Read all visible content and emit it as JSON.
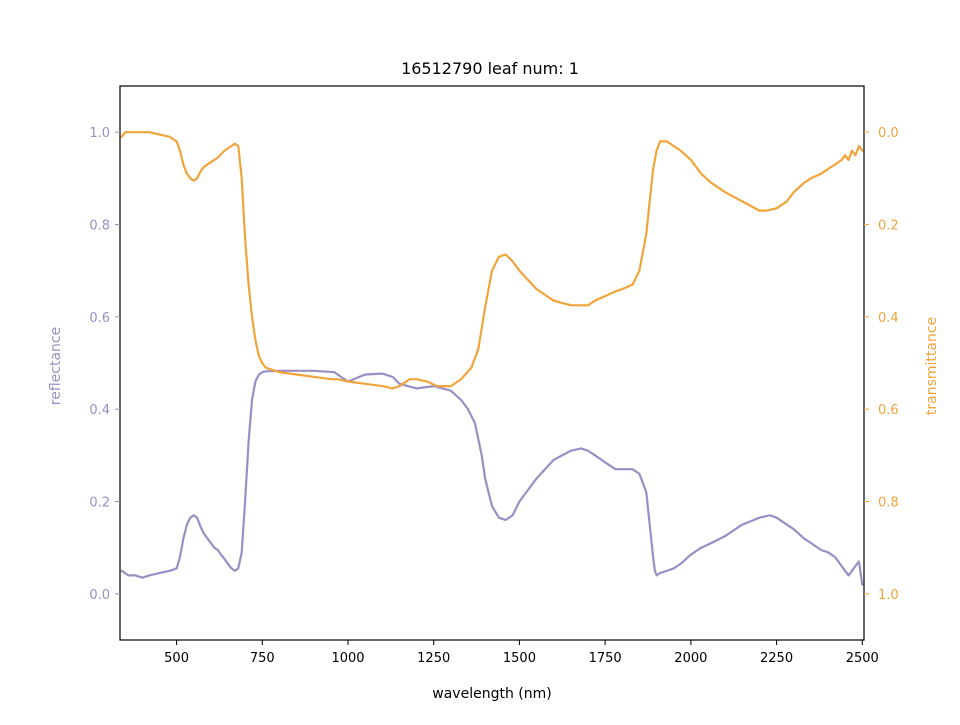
{
  "chart_data": {
    "type": "line",
    "title": "16512790 leaf num: 1",
    "xlabel": "wavelength (nm)",
    "xlim": [
      335,
      2505
    ],
    "xticks": [
      500,
      750,
      1000,
      1250,
      1500,
      1750,
      2000,
      2250,
      2500
    ],
    "xtick_labels": [
      "500",
      "750",
      "1000",
      "1250",
      "1500",
      "1750",
      "2000",
      "2250",
      "2500"
    ],
    "grid": false,
    "legend": "none",
    "left_axis": {
      "label": "reflectance",
      "color": "#9890c4",
      "lim": [
        -0.1,
        1.1
      ],
      "ticks": [
        0.0,
        0.2,
        0.4,
        0.6,
        0.8,
        1.0
      ],
      "tick_labels": [
        "0.0",
        "0.2",
        "0.4",
        "0.6",
        "0.8",
        "1.0"
      ]
    },
    "right_axis": {
      "label": "transmittance",
      "color": "#f0a43c",
      "lim": [
        1.1,
        -0.1
      ],
      "inverted": true,
      "ticks": [
        0.0,
        0.2,
        0.4,
        0.6,
        0.8,
        1.0
      ],
      "tick_labels": [
        "0.0",
        "0.2",
        "0.4",
        "0.6",
        "0.8",
        "1.0"
      ]
    },
    "series": [
      {
        "axis": "left",
        "color": "#9890c4",
        "x": [
          340,
          350,
          360,
          380,
          400,
          420,
          450,
          480,
          500,
          510,
          520,
          530,
          540,
          550,
          560,
          570,
          580,
          590,
          600,
          610,
          620,
          630,
          640,
          650,
          660,
          670,
          680,
          690,
          700,
          710,
          720,
          730,
          740,
          750,
          760,
          800,
          900,
          960,
          980,
          1000,
          1050,
          1100,
          1130,
          1150,
          1200,
          1250,
          1300,
          1330,
          1350,
          1370,
          1390,
          1400,
          1420,
          1440,
          1460,
          1480,
          1500,
          1550,
          1600,
          1650,
          1680,
          1700,
          1720,
          1750,
          1780,
          1800,
          1830,
          1850,
          1870,
          1880,
          1890,
          1895,
          1900,
          1910,
          1930,
          1950,
          1970,
          2000,
          2030,
          2060,
          2100,
          2150,
          2200,
          2230,
          2250,
          2270,
          2300,
          2330,
          2350,
          2380,
          2400,
          2420,
          2440,
          2450,
          2460,
          2470,
          2480,
          2490,
          2500
        ],
        "values": [
          0.05,
          0.045,
          0.04,
          0.04,
          0.035,
          0.04,
          0.045,
          0.05,
          0.055,
          0.08,
          0.12,
          0.15,
          0.165,
          0.17,
          0.165,
          0.145,
          0.13,
          0.12,
          0.11,
          0.1,
          0.095,
          0.085,
          0.075,
          0.065,
          0.055,
          0.05,
          0.055,
          0.09,
          0.2,
          0.33,
          0.42,
          0.46,
          0.475,
          0.48,
          0.482,
          0.483,
          0.483,
          0.48,
          0.47,
          0.46,
          0.475,
          0.477,
          0.47,
          0.455,
          0.445,
          0.45,
          0.44,
          0.42,
          0.4,
          0.37,
          0.3,
          0.25,
          0.19,
          0.165,
          0.16,
          0.17,
          0.2,
          0.25,
          0.29,
          0.31,
          0.315,
          0.31,
          0.3,
          0.285,
          0.27,
          0.27,
          0.27,
          0.26,
          0.22,
          0.15,
          0.08,
          0.05,
          0.04,
          0.045,
          0.05,
          0.055,
          0.065,
          0.085,
          0.1,
          0.11,
          0.125,
          0.15,
          0.165,
          0.17,
          0.165,
          0.155,
          0.14,
          0.12,
          0.11,
          0.095,
          0.09,
          0.08,
          0.06,
          0.05,
          0.04,
          0.05,
          0.06,
          0.07,
          0.02
        ]
      },
      {
        "axis": "right",
        "color": "#f0a43c",
        "x": [
          340,
          350,
          370,
          400,
          420,
          450,
          480,
          500,
          510,
          520,
          530,
          540,
          550,
          560,
          570,
          580,
          600,
          620,
          640,
          660,
          670,
          680,
          690,
          700,
          710,
          720,
          730,
          740,
          750,
          760,
          780,
          800,
          850,
          900,
          950,
          970,
          1000,
          1050,
          1100,
          1130,
          1150,
          1180,
          1200,
          1230,
          1260,
          1300,
          1330,
          1360,
          1380,
          1400,
          1420,
          1440,
          1460,
          1480,
          1500,
          1550,
          1600,
          1650,
          1700,
          1720,
          1750,
          1780,
          1800,
          1830,
          1850,
          1870,
          1880,
          1890,
          1900,
          1910,
          1930,
          1950,
          1970,
          2000,
          2030,
          2060,
          2100,
          2150,
          2200,
          2220,
          2250,
          2280,
          2300,
          2330,
          2350,
          2380,
          2400,
          2420,
          2440,
          2450,
          2460,
          2470,
          2480,
          2490,
          2500
        ],
        "values": [
          0.01,
          0.0,
          0.0,
          0.0,
          0.0,
          0.005,
          0.01,
          0.02,
          0.04,
          0.07,
          0.09,
          0.1,
          0.105,
          0.1,
          0.085,
          0.075,
          0.065,
          0.055,
          0.04,
          0.03,
          0.025,
          0.03,
          0.1,
          0.23,
          0.33,
          0.4,
          0.45,
          0.485,
          0.5,
          0.51,
          0.515,
          0.52,
          0.525,
          0.53,
          0.535,
          0.535,
          0.54,
          0.545,
          0.55,
          0.555,
          0.55,
          0.535,
          0.535,
          0.54,
          0.55,
          0.55,
          0.535,
          0.51,
          0.47,
          0.38,
          0.3,
          0.27,
          0.265,
          0.28,
          0.3,
          0.34,
          0.365,
          0.375,
          0.375,
          0.365,
          0.355,
          0.345,
          0.34,
          0.33,
          0.3,
          0.22,
          0.15,
          0.08,
          0.04,
          0.02,
          0.02,
          0.03,
          0.04,
          0.06,
          0.09,
          0.11,
          0.13,
          0.15,
          0.17,
          0.17,
          0.165,
          0.15,
          0.13,
          0.11,
          0.1,
          0.09,
          0.08,
          0.07,
          0.06,
          0.05,
          0.06,
          0.04,
          0.05,
          0.03,
          0.04
        ]
      }
    ]
  }
}
